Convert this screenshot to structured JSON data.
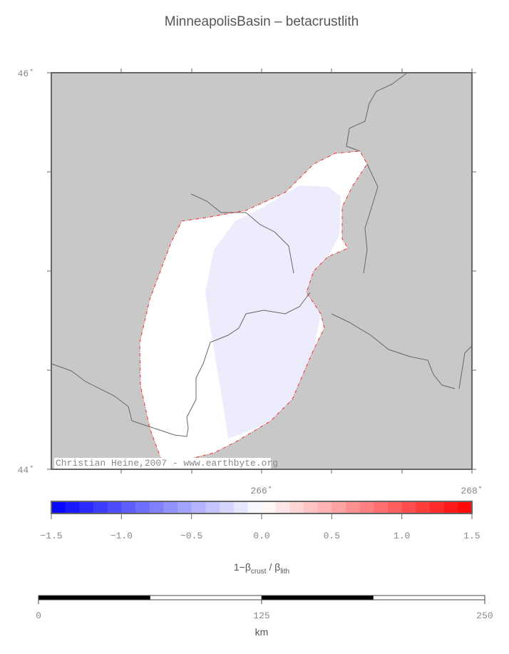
{
  "header": {
    "title": "MinneapolisBasin – betacrustlith"
  },
  "map": {
    "xlim": [
      264,
      268
    ],
    "ylim": [
      44,
      46
    ],
    "xticks": [
      {
        "value": 266,
        "label": "266˚"
      },
      {
        "value": 268,
        "label": "268˚"
      }
    ],
    "yticks": [
      {
        "value": 44,
        "label": "44˚"
      },
      {
        "value": 46,
        "label": "46˚"
      }
    ],
    "credit": "Christian Heine,2007 - www.earthbyte.org"
  },
  "colorbar": {
    "clim": [
      -1.5,
      1.5
    ],
    "ticks": [
      {
        "value": -1.5,
        "label": "−1.5"
      },
      {
        "value": -1.0,
        "label": "−1.0"
      },
      {
        "value": -0.5,
        "label": "−0.5"
      },
      {
        "value": 0,
        "label": "0.0"
      },
      {
        "value": 0.5,
        "label": "0.5"
      },
      {
        "value": 1.0,
        "label": "1.0"
      },
      {
        "value": 1.5,
        "label": "1.5"
      }
    ],
    "label": {
      "main": "1−β",
      "sub1": "crust",
      "mid": " / β",
      "sub2": "lith"
    }
  },
  "scalebar": {
    "lim": [
      0,
      250
    ],
    "ticks": [
      0,
      125,
      250
    ],
    "unit": "km"
  }
}
